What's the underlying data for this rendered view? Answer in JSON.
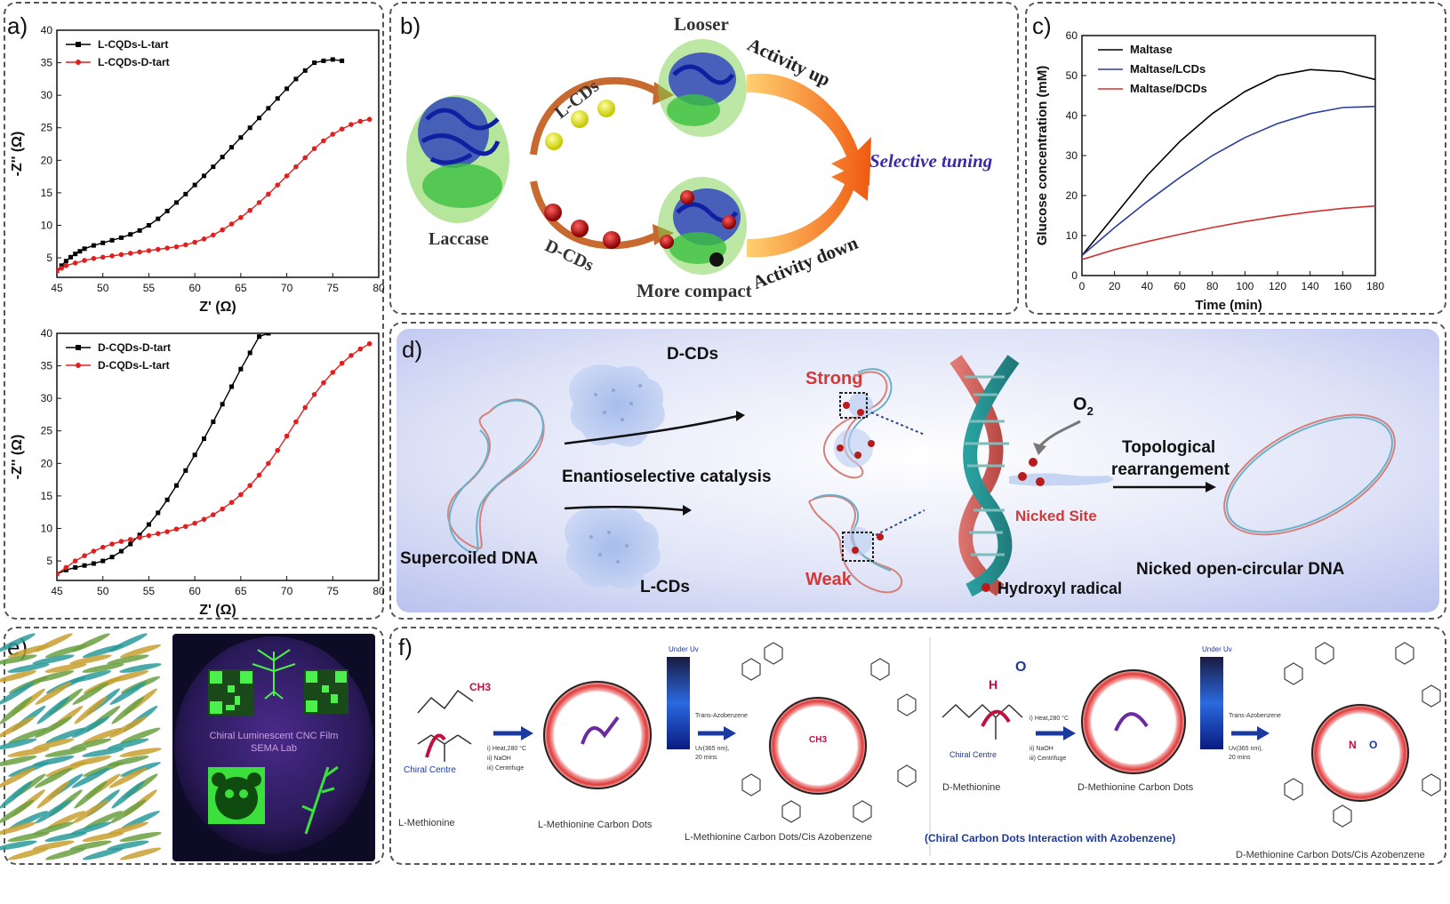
{
  "panels": {
    "a": {
      "label": "a)"
    },
    "b": {
      "label": "b)"
    },
    "c": {
      "label": "c)"
    },
    "d": {
      "label": "d)"
    },
    "e": {
      "label": "e)"
    },
    "f": {
      "label": "f)"
    }
  },
  "panel_b": {
    "laccase": "Laccase",
    "l_cds": "L-CDs",
    "d_cds": "D-CDs",
    "looser": "Looser",
    "more_compact": "More compact",
    "activity_up": "Activity up",
    "activity_down": "Activity down",
    "selective_tuning": "Selective tuning"
  },
  "panel_d": {
    "d_cds": "D-CDs",
    "l_cds": "L-CDs",
    "strong": "Strong",
    "weak": "Weak",
    "o2": "O",
    "o2_sub": "2",
    "enantioselective": "Enantioselective catalysis",
    "supercoiled": "Supercoiled DNA",
    "nicked_site": "Nicked Site",
    "topological": "Topological",
    "rearrangement": "rearrangement",
    "hydroxyl": "Hydroxyl  radical",
    "nicked_open": "Nicked open-circular  DNA"
  },
  "panel_e": {
    "film_line1": "Chiral Luminescent CNC Film",
    "film_line2": "SEMA Lab"
  },
  "panel_f": {
    "l_met": "L-Methionine",
    "l_met_dots": "L-Methionine Carbon Dots",
    "l_met_azo": "L-Methionine Carbon Dots/Cis Azobenzene",
    "d_met": "D-Methionine",
    "d_met_dots": "D-Methionine Carbon Dots",
    "d_met_azo": "D-Methionine Carbon Dots/Cis Azobenzene",
    "interaction": "(Chiral Carbon Dots Interaction with Azobenzene)",
    "chiral_centre": "Chiral Centre",
    "under_uv": "Under Uv",
    "step1": "i) Heat,280 °C",
    "step2": "ii) NaOH",
    "step3": "iii) Centrifuge",
    "trans_azo": "Trans-Azobenzene",
    "uv_cond": "Uv(365 nm),",
    "uv_time": "20 mins",
    "ch3": "CH3"
  },
  "chart_data": [
    {
      "type": "line",
      "id": "a_top",
      "xlabel": "Z' (Ω)",
      "ylabel": "-Z'' (Ω)",
      "xlim": [
        45,
        80
      ],
      "ylim": [
        2,
        40
      ],
      "xticks": [
        45,
        50,
        55,
        60,
        65,
        70,
        75,
        80
      ],
      "yticks": [
        5,
        10,
        15,
        20,
        25,
        30,
        35,
        40
      ],
      "legend": "top-left",
      "series": [
        {
          "name": "L-CQDs-L-tart",
          "color": "#000000",
          "marker": "square",
          "points": [
            [
              45,
              3
            ],
            [
              45.5,
              3.8
            ],
            [
              46,
              4.5
            ],
            [
              46.5,
              5.1
            ],
            [
              47,
              5.6
            ],
            [
              47.5,
              6.0
            ],
            [
              48,
              6.4
            ],
            [
              49,
              6.9
            ],
            [
              50,
              7.3
            ],
            [
              51,
              7.7
            ],
            [
              52,
              8.1
            ],
            [
              53,
              8.6
            ],
            [
              54,
              9.2
            ],
            [
              55,
              10.0
            ],
            [
              56,
              11.0
            ],
            [
              57,
              12.2
            ],
            [
              58,
              13.5
            ],
            [
              59,
              14.8
            ],
            [
              60,
              16.2
            ],
            [
              61,
              17.6
            ],
            [
              62,
              19.0
            ],
            [
              63,
              20.5
            ],
            [
              64,
              22.0
            ],
            [
              65,
              23.5
            ],
            [
              66,
              25.0
            ],
            [
              67,
              26.5
            ],
            [
              68,
              28.0
            ],
            [
              69,
              29.5
            ],
            [
              70,
              31.0
            ],
            [
              71,
              32.5
            ],
            [
              72,
              33.8
            ],
            [
              73,
              35.0
            ],
            [
              74,
              35.3
            ],
            [
              75,
              35.5
            ],
            [
              76,
              35.3
            ]
          ]
        },
        {
          "name": "L-CQDs-D-tart",
          "color": "#e02020",
          "marker": "circle",
          "points": [
            [
              45,
              3
            ],
            [
              45.5,
              3.4
            ],
            [
              46,
              3.8
            ],
            [
              47,
              4.2
            ],
            [
              48,
              4.6
            ],
            [
              49,
              4.9
            ],
            [
              50,
              5.1
            ],
            [
              51,
              5.3
            ],
            [
              52,
              5.5
            ],
            [
              53,
              5.7
            ],
            [
              54,
              5.9
            ],
            [
              55,
              6.1
            ],
            [
              56,
              6.3
            ],
            [
              57,
              6.5
            ],
            [
              58,
              6.7
            ],
            [
              59,
              7.0
            ],
            [
              60,
              7.4
            ],
            [
              61,
              7.9
            ],
            [
              62,
              8.5
            ],
            [
              63,
              9.3
            ],
            [
              64,
              10.2
            ],
            [
              65,
              11.2
            ],
            [
              66,
              12.3
            ],
            [
              67,
              13.5
            ],
            [
              68,
              14.8
            ],
            [
              69,
              16.2
            ],
            [
              70,
              17.6
            ],
            [
              71,
              19.0
            ],
            [
              72,
              20.4
            ],
            [
              73,
              21.8
            ],
            [
              74,
              23.0
            ],
            [
              75,
              24.0
            ],
            [
              76,
              24.8
            ],
            [
              77,
              25.5
            ],
            [
              78,
              26.0
            ],
            [
              79,
              26.3
            ]
          ]
        }
      ]
    },
    {
      "type": "line",
      "id": "a_bottom",
      "xlabel": "Z' (Ω)",
      "ylabel": "-Z'' (Ω)",
      "xlim": [
        45,
        80
      ],
      "ylim": [
        2,
        40
      ],
      "xticks": [
        45,
        50,
        55,
        60,
        65,
        70,
        75,
        80
      ],
      "yticks": [
        5,
        10,
        15,
        20,
        25,
        30,
        35,
        40
      ],
      "legend": "top-left",
      "series": [
        {
          "name": "D-CQDs-D-tart",
          "color": "#000000",
          "marker": "square",
          "points": [
            [
              45,
              3
            ],
            [
              46,
              3.6
            ],
            [
              47,
              4.0
            ],
            [
              48,
              4.3
            ],
            [
              49,
              4.6
            ],
            [
              50,
              5.0
            ],
            [
              51,
              5.6
            ],
            [
              52,
              6.5
            ],
            [
              53,
              7.6
            ],
            [
              54,
              9.0
            ],
            [
              55,
              10.6
            ],
            [
              56,
              12.4
            ],
            [
              57,
              14.4
            ],
            [
              58,
              16.6
            ],
            [
              59,
              18.9
            ],
            [
              60,
              21.3
            ],
            [
              61,
              23.8
            ],
            [
              62,
              26.4
            ],
            [
              63,
              29.1
            ],
            [
              64,
              31.8
            ],
            [
              65,
              34.5
            ],
            [
              66,
              37.0
            ],
            [
              67,
              39.5
            ],
            [
              68,
              40
            ]
          ]
        },
        {
          "name": "D-CQDs-L-tart",
          "color": "#e02020",
          "marker": "circle",
          "points": [
            [
              45,
              3
            ],
            [
              46,
              4.0
            ],
            [
              47,
              5.0
            ],
            [
              48,
              5.8
            ],
            [
              49,
              6.5
            ],
            [
              50,
              7.1
            ],
            [
              51,
              7.6
            ],
            [
              52,
              8.0
            ],
            [
              53,
              8.3
            ],
            [
              54,
              8.6
            ],
            [
              55,
              8.9
            ],
            [
              56,
              9.2
            ],
            [
              57,
              9.5
            ],
            [
              58,
              9.9
            ],
            [
              59,
              10.3
            ],
            [
              60,
              10.8
            ],
            [
              61,
              11.4
            ],
            [
              62,
              12.1
            ],
            [
              63,
              13.0
            ],
            [
              64,
              14.0
            ],
            [
              65,
              15.2
            ],
            [
              66,
              16.6
            ],
            [
              67,
              18.2
            ],
            [
              68,
              20.0
            ],
            [
              69,
              22.0
            ],
            [
              70,
              24.2
            ],
            [
              71,
              26.4
            ],
            [
              72,
              28.6
            ],
            [
              73,
              30.6
            ],
            [
              74,
              32.4
            ],
            [
              75,
              34.0
            ],
            [
              76,
              35.4
            ],
            [
              77,
              36.6
            ],
            [
              78,
              37.6
            ],
            [
              79,
              38.4
            ]
          ]
        }
      ]
    },
    {
      "type": "line",
      "id": "c",
      "xlabel": "Time (min)",
      "ylabel": "Glucose concentration (mM)",
      "xlim": [
        0,
        180
      ],
      "ylim": [
        0,
        60
      ],
      "xticks": [
        0,
        20,
        40,
        60,
        80,
        100,
        120,
        140,
        160,
        180
      ],
      "yticks": [
        0,
        10,
        20,
        30,
        40,
        50,
        60
      ],
      "legend": "top-left",
      "series": [
        {
          "name": "Maltase",
          "color": "#000000",
          "points": [
            [
              0,
              5
            ],
            [
              20,
              15
            ],
            [
              40,
              25
            ],
            [
              60,
              33.5
            ],
            [
              80,
              40.5
            ],
            [
              100,
              46
            ],
            [
              120,
              50
            ],
            [
              140,
              51.5
            ],
            [
              160,
              51
            ],
            [
              180,
              49
            ]
          ]
        },
        {
          "name": "Maltase/LCDs",
          "color": "#2c3e9e",
          "points": [
            [
              0,
              5
            ],
            [
              20,
              12
            ],
            [
              40,
              18.5
            ],
            [
              60,
              24.5
            ],
            [
              80,
              30
            ],
            [
              100,
              34.5
            ],
            [
              120,
              38
            ],
            [
              140,
              40.5
            ],
            [
              160,
              42
            ],
            [
              180,
              42.3
            ]
          ]
        },
        {
          "name": "Maltase/DCDs",
          "color": "#d03030",
          "points": [
            [
              0,
              4
            ],
            [
              20,
              6.5
            ],
            [
              40,
              8.5
            ],
            [
              60,
              10.3
            ],
            [
              80,
              12
            ],
            [
              100,
              13.5
            ],
            [
              120,
              14.8
            ],
            [
              140,
              15.9
            ],
            [
              160,
              16.8
            ],
            [
              180,
              17.4
            ]
          ]
        }
      ]
    }
  ]
}
